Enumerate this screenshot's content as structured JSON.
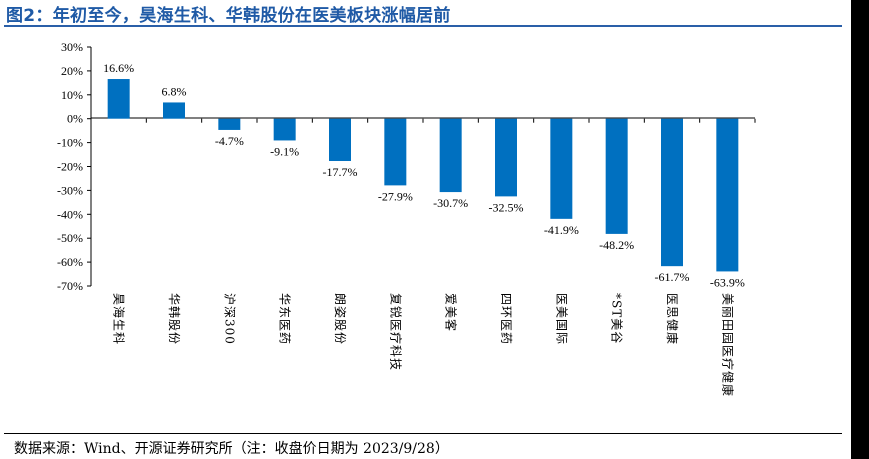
{
  "title": "图2：年初至今，昊海生科、华韩股份在医美板块涨幅居前",
  "source": "数据来源：Wind、开源证券研究所（注：收盘价日期为 2023/9/28）",
  "colors": {
    "bar": "#0070c0",
    "title": "#1f5aa6"
  },
  "chart_data": {
    "type": "bar",
    "title": "",
    "xlabel": "",
    "ylabel": "",
    "ylim": [
      -70,
      30
    ],
    "yticks": [
      "30%",
      "20%",
      "10%",
      "0%",
      "-10%",
      "-20%",
      "-30%",
      "-40%",
      "-50%",
      "-60%",
      "-70%"
    ],
    "ytick_values": [
      30,
      20,
      10,
      0,
      -10,
      -20,
      -30,
      -40,
      -50,
      -60,
      -70
    ],
    "grid": false,
    "categories": [
      "昊海生科",
      "华韩股份",
      "沪深300",
      "华东医药",
      "朗姿股份",
      "复锐医疗科技",
      "爱美客",
      "四环医药",
      "医美国际",
      "*ST美谷",
      "医思健康",
      "美丽田园医疗健康"
    ],
    "values": [
      16.6,
      6.8,
      -4.7,
      -9.1,
      -17.7,
      -27.9,
      -30.7,
      -32.5,
      -41.9,
      -48.2,
      -61.7,
      -63.9
    ],
    "data_labels": [
      "16.6%",
      "6.8%",
      "-4.7%",
      "-9.1%",
      "-17.7%",
      "-27.9%",
      "-30.7%",
      "-32.5%",
      "-41.9%",
      "-48.2%",
      "-61.7%",
      "-63.9%"
    ]
  }
}
